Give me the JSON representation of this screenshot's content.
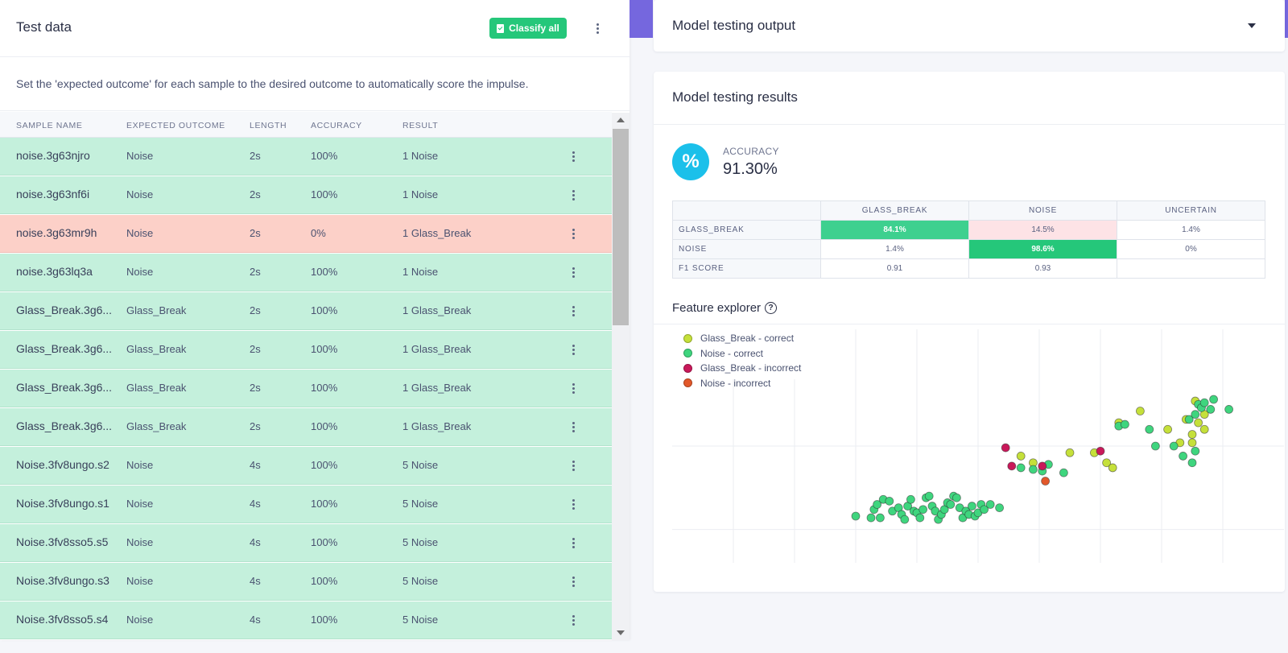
{
  "test_data": {
    "title": "Test data",
    "classify_all_label": "Classify all",
    "description": "Set the 'expected outcome' for each sample to the desired outcome to automatically score the impulse.",
    "columns": [
      "SAMPLE NAME",
      "EXPECTED OUTCOME",
      "LENGTH",
      "ACCURACY",
      "RESULT"
    ],
    "rows": [
      {
        "name": "noise.3g63njro",
        "expected": "Noise",
        "length": "2s",
        "accuracy": "100%",
        "result": "1 Noise",
        "status": "correct"
      },
      {
        "name": "noise.3g63nf6i",
        "expected": "Noise",
        "length": "2s",
        "accuracy": "100%",
        "result": "1 Noise",
        "status": "correct"
      },
      {
        "name": "noise.3g63mr9h",
        "expected": "Noise",
        "length": "2s",
        "accuracy": "0%",
        "result": "1 Glass_Break",
        "status": "incorrect"
      },
      {
        "name": "noise.3g63lq3a",
        "expected": "Noise",
        "length": "2s",
        "accuracy": "100%",
        "result": "1 Noise",
        "status": "correct"
      },
      {
        "name": "Glass_Break.3g6...",
        "expected": "Glass_Break",
        "length": "2s",
        "accuracy": "100%",
        "result": "1 Glass_Break",
        "status": "correct"
      },
      {
        "name": "Glass_Break.3g6...",
        "expected": "Glass_Break",
        "length": "2s",
        "accuracy": "100%",
        "result": "1 Glass_Break",
        "status": "correct"
      },
      {
        "name": "Glass_Break.3g6...",
        "expected": "Glass_Break",
        "length": "2s",
        "accuracy": "100%",
        "result": "1 Glass_Break",
        "status": "correct"
      },
      {
        "name": "Glass_Break.3g6...",
        "expected": "Glass_Break",
        "length": "2s",
        "accuracy": "100%",
        "result": "1 Glass_Break",
        "status": "correct"
      },
      {
        "name": "Noise.3fv8ungo.s2",
        "expected": "Noise",
        "length": "4s",
        "accuracy": "100%",
        "result": "5 Noise",
        "status": "correct"
      },
      {
        "name": "Noise.3fv8ungo.s1",
        "expected": "Noise",
        "length": "4s",
        "accuracy": "100%",
        "result": "5 Noise",
        "status": "correct"
      },
      {
        "name": "Noise.3fv8sso5.s5",
        "expected": "Noise",
        "length": "4s",
        "accuracy": "100%",
        "result": "5 Noise",
        "status": "correct"
      },
      {
        "name": "Noise.3fv8ungo.s3",
        "expected": "Noise",
        "length": "4s",
        "accuracy": "100%",
        "result": "5 Noise",
        "status": "correct"
      },
      {
        "name": "Noise.3fv8sso5.s4",
        "expected": "Noise",
        "length": "4s",
        "accuracy": "100%",
        "result": "5 Noise",
        "status": "correct"
      }
    ]
  },
  "output": {
    "title": "Model testing output"
  },
  "results": {
    "title": "Model testing results",
    "accuracy_label": "ACCURACY",
    "accuracy_value": "91.30%",
    "confusion": {
      "columns": [
        "GLASS_BREAK",
        "NOISE",
        "UNCERTAIN"
      ],
      "rows": [
        {
          "label": "GLASS_BREAK",
          "values": [
            "84.1%",
            "14.5%",
            "1.4%"
          ]
        },
        {
          "label": "NOISE",
          "values": [
            "1.4%",
            "98.6%",
            "0%"
          ]
        },
        {
          "label": "F1 SCORE",
          "values": [
            "0.91",
            "0.93",
            ""
          ]
        }
      ]
    },
    "feature_explorer_title": "Feature explorer"
  },
  "colors": {
    "correct_row": "#c4f0dc",
    "incorrect_row": "#fcd0c8",
    "accent_green": "#25c77a",
    "purple": "#7567de",
    "cyan": "#1bc0ea"
  },
  "chart_data": {
    "type": "scatter",
    "title": "Feature explorer",
    "legend": [
      "Glass_Break - correct",
      "Noise - correct",
      "Glass_Break - incorrect",
      "Noise - incorrect"
    ],
    "legend_placement": "top-left",
    "xlim": [
      -1,
      9
    ],
    "ylim": [
      -1,
      6
    ],
    "grid": true,
    "series": [
      {
        "name": "Glass_Break - correct",
        "color": "#c5e03a",
        "points": [
          [
            4.7,
            2.2
          ],
          [
            4.9,
            2.0
          ],
          [
            5.5,
            2.3
          ],
          [
            5.9,
            2.3
          ],
          [
            6.1,
            2.0
          ],
          [
            6.2,
            1.85
          ],
          [
            7.1,
            3.0
          ],
          [
            7.4,
            3.3
          ],
          [
            7.6,
            3.2
          ],
          [
            7.7,
            3.0
          ],
          [
            7.3,
            2.6
          ],
          [
            7.5,
            2.6
          ],
          [
            6.3,
            3.2
          ],
          [
            6.65,
            3.55
          ],
          [
            7.5,
            2.85
          ],
          [
            7.55,
            3.85
          ],
          [
            7.65,
            3.7
          ],
          [
            7.7,
            3.45
          ]
        ]
      },
      {
        "name": "Noise - correct",
        "color": "#3fd57e",
        "points": [
          [
            2.0,
            0.4
          ],
          [
            2.25,
            0.35
          ],
          [
            2.4,
            0.35
          ],
          [
            2.3,
            0.6
          ],
          [
            2.35,
            0.75
          ],
          [
            2.45,
            0.9
          ],
          [
            2.55,
            0.85
          ],
          [
            2.6,
            0.55
          ],
          [
            2.7,
            0.65
          ],
          [
            2.75,
            0.45
          ],
          [
            2.8,
            0.3
          ],
          [
            2.85,
            0.7
          ],
          [
            2.9,
            0.9
          ],
          [
            2.95,
            0.55
          ],
          [
            3.0,
            0.5
          ],
          [
            3.05,
            0.35
          ],
          [
            3.1,
            0.6
          ],
          [
            3.15,
            0.95
          ],
          [
            3.2,
            1.0
          ],
          [
            3.25,
            0.7
          ],
          [
            3.3,
            0.55
          ],
          [
            3.35,
            0.3
          ],
          [
            3.4,
            0.45
          ],
          [
            3.45,
            0.6
          ],
          [
            3.5,
            0.8
          ],
          [
            3.55,
            0.75
          ],
          [
            3.6,
            1.0
          ],
          [
            3.65,
            0.95
          ],
          [
            3.7,
            0.65
          ],
          [
            3.75,
            0.35
          ],
          [
            3.8,
            0.55
          ],
          [
            3.85,
            0.45
          ],
          [
            3.9,
            0.7
          ],
          [
            3.95,
            0.4
          ],
          [
            4.0,
            0.5
          ],
          [
            4.05,
            0.75
          ],
          [
            4.1,
            0.6
          ],
          [
            4.2,
            0.75
          ],
          [
            4.35,
            0.65
          ],
          [
            4.7,
            1.85
          ],
          [
            4.9,
            1.8
          ],
          [
            5.05,
            1.75
          ],
          [
            5.15,
            1.95
          ],
          [
            5.4,
            1.7
          ],
          [
            6.3,
            3.1
          ],
          [
            6.4,
            3.15
          ],
          [
            6.8,
            3.0
          ],
          [
            7.5,
            2.0
          ],
          [
            7.35,
            2.2
          ],
          [
            7.55,
            2.35
          ],
          [
            7.2,
            2.5
          ],
          [
            6.9,
            2.5
          ],
          [
            7.45,
            3.3
          ],
          [
            7.55,
            3.45
          ],
          [
            7.6,
            3.75
          ],
          [
            7.65,
            3.65
          ],
          [
            7.7,
            3.8
          ],
          [
            7.8,
            3.6
          ],
          [
            7.85,
            3.9
          ],
          [
            8.1,
            3.6
          ]
        ]
      },
      {
        "name": "Glass_Break - incorrect",
        "color": "#c9185a",
        "points": [
          [
            4.45,
            2.45
          ],
          [
            4.55,
            1.9
          ],
          [
            5.05,
            1.9
          ],
          [
            6.0,
            2.35
          ]
        ]
      },
      {
        "name": "Noise - incorrect",
        "color": "#e2582a",
        "points": [
          [
            5.1,
            1.45
          ]
        ]
      }
    ]
  }
}
